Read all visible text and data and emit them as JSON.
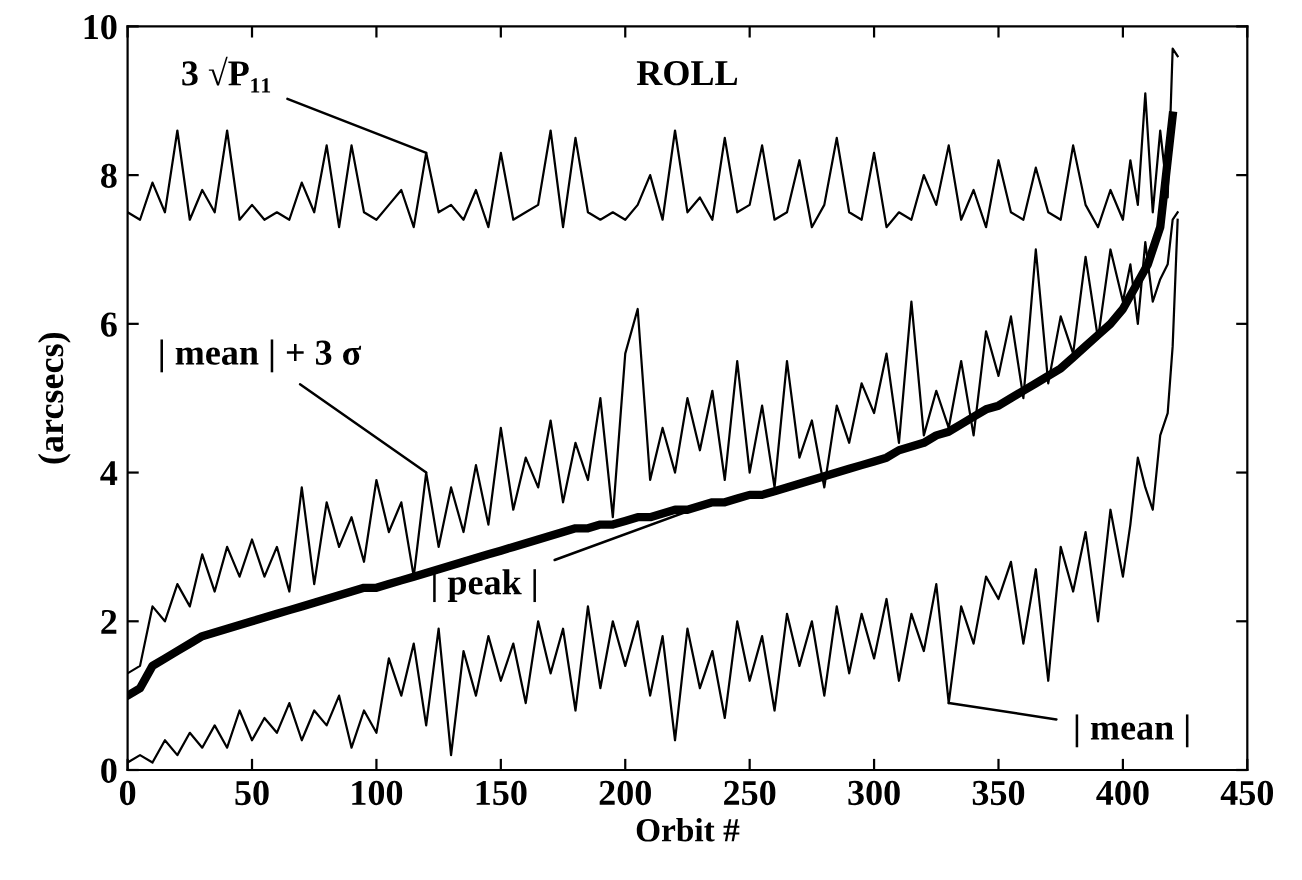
{
  "chart_data": {
    "type": "line",
    "title": "ROLL",
    "xlabel": "Orbit #",
    "ylabel": "(arcsecs)",
    "xlim": [
      0,
      450
    ],
    "xticks": [
      0,
      50,
      100,
      150,
      200,
      250,
      300,
      350,
      400,
      450
    ],
    "ylim": [
      0,
      10
    ],
    "yticks": [
      0,
      2,
      4,
      6,
      8,
      10
    ],
    "grid": false,
    "legend": false,
    "marker": "none",
    "line_style": "solid",
    "x": [
      0,
      5,
      10,
      15,
      20,
      25,
      30,
      35,
      40,
      45,
      50,
      55,
      60,
      65,
      70,
      75,
      80,
      85,
      90,
      95,
      100,
      105,
      110,
      115,
      120,
      125,
      130,
      135,
      140,
      145,
      150,
      155,
      160,
      165,
      170,
      175,
      180,
      185,
      190,
      195,
      200,
      205,
      210,
      215,
      220,
      225,
      230,
      235,
      240,
      245,
      250,
      255,
      260,
      265,
      270,
      275,
      280,
      285,
      290,
      295,
      300,
      305,
      310,
      315,
      320,
      325,
      330,
      335,
      340,
      345,
      350,
      355,
      360,
      365,
      370,
      375,
      380,
      385,
      390,
      395,
      400,
      403,
      406,
      409,
      412,
      415,
      418,
      420,
      422
    ],
    "series": [
      {
        "color": "#000000",
        "values": [
          7.5,
          7.4,
          7.9,
          7.5,
          8.6,
          7.4,
          7.8,
          7.5,
          8.6,
          7.4,
          7.6,
          7.4,
          7.5,
          7.4,
          7.9,
          7.5,
          8.4,
          7.3,
          8.4,
          7.5,
          7.4,
          7.6,
          7.8,
          7.3,
          8.3,
          7.5,
          7.6,
          7.4,
          7.8,
          7.3,
          8.3,
          7.4,
          7.5,
          7.6,
          8.6,
          7.3,
          8.5,
          7.5,
          7.4,
          7.5,
          7.4,
          7.6,
          8.0,
          7.4,
          8.6,
          7.5,
          7.7,
          7.4,
          8.5,
          7.5,
          7.6,
          8.4,
          7.4,
          7.5,
          8.2,
          7.3,
          7.6,
          8.5,
          7.5,
          7.4,
          8.3,
          7.3,
          7.5,
          7.4,
          8.0,
          7.6,
          8.4,
          7.4,
          7.8,
          7.3,
          8.2,
          7.5,
          7.4,
          8.1,
          7.5,
          7.4,
          8.4,
          7.6,
          7.3,
          7.8,
          7.4,
          8.2,
          7.6,
          9.1,
          7.5,
          8.6,
          7.7,
          9.7,
          9.6
        ]
      },
      {
        "color": "#000000",
        "values": [
          1.3,
          1.4,
          2.2,
          2.0,
          2.5,
          2.2,
          2.9,
          2.4,
          3.0,
          2.6,
          3.1,
          2.6,
          3.0,
          2.4,
          3.8,
          2.5,
          3.6,
          3.0,
          3.4,
          2.8,
          3.9,
          3.2,
          3.6,
          2.6,
          4.0,
          3.0,
          3.8,
          3.2,
          4.1,
          3.3,
          4.6,
          3.5,
          4.2,
          3.8,
          4.7,
          3.6,
          4.4,
          3.9,
          5.0,
          3.4,
          5.6,
          6.2,
          3.9,
          4.6,
          4.0,
          5.0,
          4.3,
          5.1,
          3.9,
          5.5,
          4.0,
          4.9,
          3.8,
          5.5,
          4.2,
          4.7,
          3.8,
          4.9,
          4.4,
          5.2,
          4.8,
          5.6,
          4.4,
          6.3,
          4.5,
          5.1,
          4.6,
          5.5,
          4.5,
          5.9,
          5.3,
          6.1,
          5.0,
          7.0,
          5.2,
          6.1,
          5.6,
          6.9,
          5.8,
          7.0,
          6.3,
          6.8,
          6.0,
          7.1,
          6.3,
          6.6,
          6.8,
          7.4,
          7.5
        ]
      },
      {
        "color": "#000000",
        "values": [
          0.1,
          0.2,
          0.1,
          0.4,
          0.2,
          0.5,
          0.3,
          0.6,
          0.3,
          0.8,
          0.4,
          0.7,
          0.5,
          0.9,
          0.4,
          0.8,
          0.6,
          1.0,
          0.3,
          0.8,
          0.5,
          1.5,
          1.0,
          1.7,
          0.6,
          1.9,
          0.2,
          1.6,
          1.0,
          1.8,
          1.2,
          1.7,
          0.9,
          2.0,
          1.3,
          1.9,
          0.8,
          2.2,
          1.1,
          2.0,
          1.4,
          2.0,
          1.0,
          1.8,
          0.4,
          1.9,
          1.1,
          1.6,
          0.7,
          2.0,
          1.2,
          1.8,
          0.8,
          2.1,
          1.4,
          2.0,
          1.0,
          2.2,
          1.3,
          2.1,
          1.5,
          2.3,
          1.2,
          2.1,
          1.6,
          2.5,
          0.9,
          2.2,
          1.7,
          2.6,
          2.3,
          2.8,
          1.7,
          2.7,
          1.2,
          3.0,
          2.4,
          3.2,
          2.0,
          3.5,
          2.6,
          3.3,
          4.2,
          3.8,
          3.5,
          4.5,
          4.8,
          5.7,
          7.4
        ]
      },
      {
        "color": "#000000",
        "x": [
          0,
          5,
          10,
          15,
          20,
          25,
          30,
          35,
          40,
          45,
          50,
          55,
          60,
          65,
          70,
          75,
          80,
          85,
          90,
          95,
          100,
          105,
          110,
          115,
          120,
          125,
          130,
          135,
          140,
          145,
          150,
          155,
          160,
          165,
          170,
          175,
          180,
          185,
          190,
          195,
          200,
          205,
          210,
          215,
          220,
          225,
          230,
          235,
          240,
          245,
          250,
          255,
          260,
          265,
          270,
          275,
          280,
          285,
          290,
          295,
          300,
          305,
          310,
          315,
          320,
          325,
          330,
          335,
          340,
          345,
          350,
          355,
          360,
          365,
          370,
          375,
          380,
          385,
          390,
          395,
          400,
          405,
          410,
          415,
          420
        ],
        "values": [
          1.0,
          1.1,
          1.4,
          1.5,
          1.6,
          1.7,
          1.8,
          1.85,
          1.9,
          1.95,
          2.0,
          2.05,
          2.1,
          2.15,
          2.2,
          2.25,
          2.3,
          2.35,
          2.4,
          2.45,
          2.45,
          2.5,
          2.55,
          2.6,
          2.65,
          2.7,
          2.75,
          2.8,
          2.85,
          2.9,
          2.95,
          3.0,
          3.05,
          3.1,
          3.15,
          3.2,
          3.25,
          3.25,
          3.3,
          3.3,
          3.35,
          3.4,
          3.4,
          3.45,
          3.5,
          3.5,
          3.55,
          3.6,
          3.6,
          3.65,
          3.7,
          3.7,
          3.75,
          3.8,
          3.85,
          3.9,
          3.95,
          4.0,
          4.05,
          4.1,
          4.15,
          4.2,
          4.3,
          4.35,
          4.4,
          4.5,
          4.55,
          4.65,
          4.75,
          4.85,
          4.9,
          5.0,
          5.1,
          5.2,
          5.3,
          5.4,
          5.55,
          5.7,
          5.85,
          6.0,
          6.2,
          6.5,
          6.8,
          7.3,
          8.8
        ]
      }
    ],
    "annotations": [
      {
        "text": "3 √P₁₁",
        "x": 120,
        "y": 8.3
      },
      {
        "text": "| mean | + 3 σ",
        "x": 120,
        "y": 4.0
      },
      {
        "text": "| peak |",
        "x": 235,
        "y": 3.6
      },
      {
        "text": "| mean |",
        "x": 330,
        "y": 0.9
      }
    ]
  }
}
